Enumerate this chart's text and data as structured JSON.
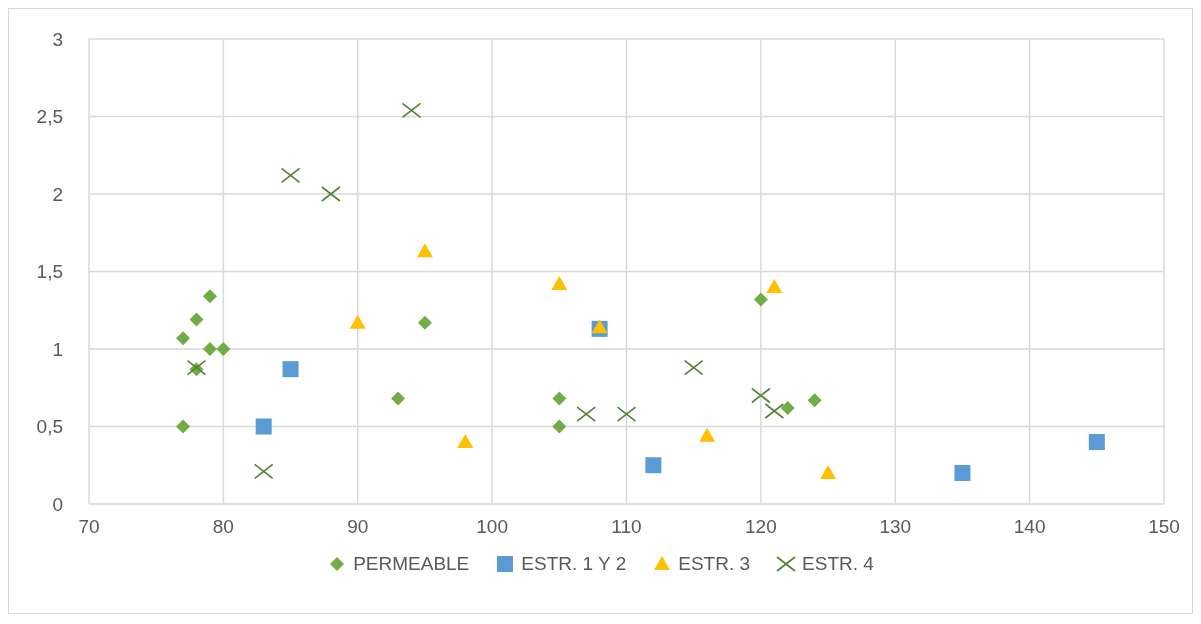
{
  "chart_data": {
    "type": "scatter",
    "xlim": [
      70,
      150
    ],
    "xticks": [
      70,
      80,
      90,
      100,
      110,
      120,
      130,
      140,
      150
    ],
    "ylim": [
      0,
      3
    ],
    "yticks": [
      0,
      {
        "value": 0.5,
        "label": "0,5"
      },
      1,
      {
        "value": 1.5,
        "label": "1,5"
      },
      2,
      {
        "value": 2.5,
        "label": "2,5"
      },
      3
    ],
    "grid": true,
    "legend": "bottom",
    "series": [
      {
        "name": "PERMEABLE",
        "color": "#70ad47",
        "marker": "diamond",
        "x": [
          77,
          77,
          78,
          79,
          79,
          80,
          78,
          93,
          95,
          105,
          105,
          120,
          122,
          124
        ],
        "values": [
          0.5,
          1.07,
          1.19,
          1.34,
          1.0,
          1.0,
          0.87,
          0.68,
          1.17,
          0.68,
          0.5,
          1.32,
          0.62,
          0.67
        ]
      },
      {
        "name": "ESTR. 1 Y 2",
        "color": "#5b9bd5",
        "marker": "square",
        "x": [
          83,
          85,
          108,
          112,
          135,
          145
        ],
        "values": [
          0.5,
          0.87,
          1.13,
          0.25,
          0.2,
          0.4
        ]
      },
      {
        "name": "ESTR. 3",
        "color": "#ffc000",
        "marker": "triangle",
        "x": [
          90,
          95,
          98,
          105,
          108,
          116,
          121,
          125
        ],
        "values": [
          1.17,
          1.63,
          0.4,
          1.42,
          1.14,
          0.44,
          1.4,
          0.2
        ]
      },
      {
        "name": "ESTR. 4",
        "color": "#548235",
        "marker": "cross",
        "x": [
          78,
          83,
          85,
          88,
          94,
          107,
          110,
          115,
          120,
          121
        ],
        "values": [
          0.88,
          0.21,
          2.12,
          2.0,
          2.54,
          0.58,
          0.58,
          0.88,
          0.7,
          0.6
        ]
      }
    ]
  }
}
